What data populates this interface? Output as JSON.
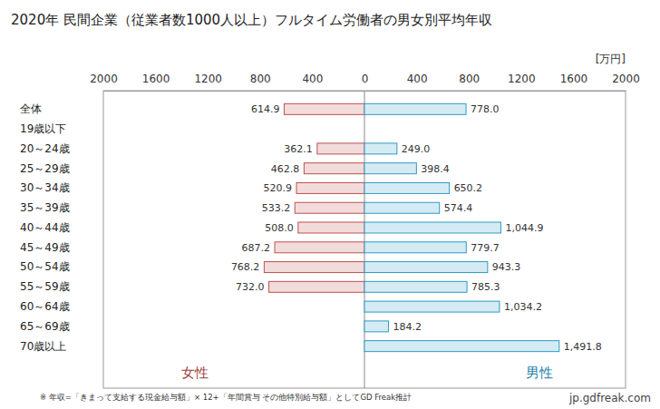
{
  "chart_data": {
    "type": "bar",
    "orientation": "horizontal",
    "title": "2020年 民間企業（従業者数1000人以上）フルタイム労働者の男女別平均年収",
    "x_label": "[万円]",
    "categories": [
      "全体",
      "19歳以下",
      "20～24歳",
      "25～29歳",
      "30～34歳",
      "35～39歳",
      "40～44歳",
      "45～49歳",
      "50～54歳",
      "55～59歳",
      "60～64歳",
      "65～69歳",
      "70歳以上"
    ],
    "series": [
      {
        "name": "女性",
        "color": "#c0504d",
        "values": [
          614.9,
          null,
          362.1,
          462.8,
          520.9,
          533.2,
          508.0,
          687.2,
          768.2,
          732.0,
          null,
          null,
          null
        ],
        "value_labels": [
          "614.9",
          null,
          "362.1",
          "462.8",
          "520.9",
          "533.2",
          "508.0",
          "687.2",
          "768.2",
          "732.0",
          null,
          null,
          null
        ]
      },
      {
        "name": "男性",
        "color": "#2e9bc6",
        "values": [
          778.0,
          null,
          249.0,
          398.4,
          650.2,
          574.4,
          1044.9,
          779.7,
          943.3,
          785.3,
          1034.2,
          184.2,
          1491.8
        ],
        "value_labels": [
          "778.0",
          null,
          "249.0",
          "398.4",
          "650.2",
          "574.4",
          "1,044.9",
          "779.7",
          "943.3",
          "785.3",
          "1,034.2",
          "184.2",
          "1,491.8"
        ]
      }
    ],
    "xlim": [
      0,
      2000
    ],
    "xticks": [
      0,
      400,
      800,
      1200,
      1600,
      2000
    ],
    "data_labels": true,
    "legend": "bottom",
    "grid": false,
    "annotations": [
      "※ 年収=「きまって支給する現金給与額」× 12+「年間賞与 その他特別給与額」としてGD Freak推計",
      "jp.gdfreak.com"
    ]
  }
}
